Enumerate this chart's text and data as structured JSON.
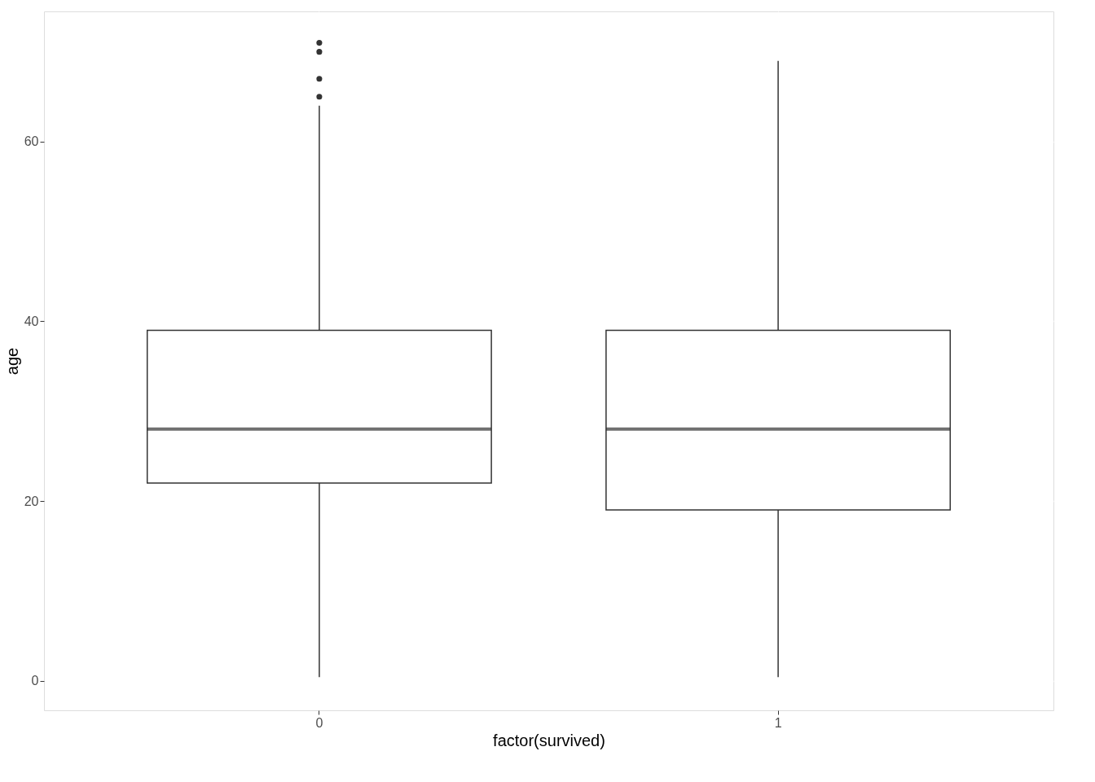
{
  "chart_data": {
    "type": "box",
    "xlabel": "factor(survived)",
    "ylabel": "age",
    "categories": [
      "0",
      "1"
    ],
    "boxes": [
      {
        "low": 0.4,
        "q1": 22,
        "median": 28,
        "q3": 39,
        "high": 64,
        "outliers": [
          65,
          67,
          70,
          71
        ]
      },
      {
        "low": 0.4,
        "q1": 19,
        "median": 28,
        "q3": 39,
        "high": 69
      }
    ],
    "ylim": [
      -3.3,
      74.5
    ],
    "yticks": [
      0,
      20,
      40,
      60
    ],
    "grid": true
  }
}
